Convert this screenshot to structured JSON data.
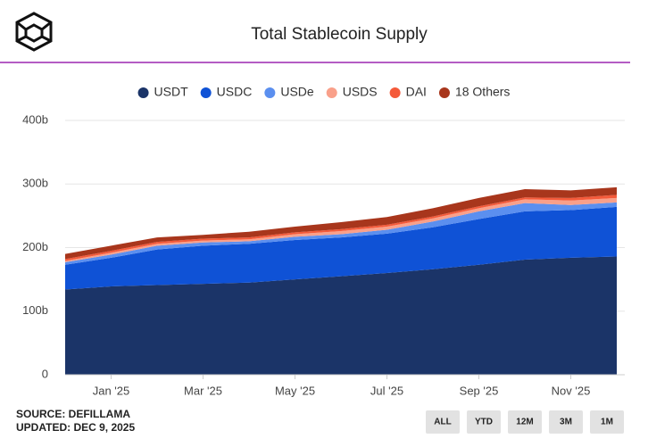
{
  "header": {
    "title": "Total Stablecoin Supply"
  },
  "chart_data": {
    "type": "area",
    "stacked": true,
    "categories": [
      null,
      "Jan '25",
      null,
      "Mar '25",
      null,
      "May '25",
      null,
      "Jul '25",
      null,
      "Sep '25",
      null,
      "Nov '25",
      null
    ],
    "series": [
      {
        "name": "USDT",
        "color": "#1b3468",
        "values": [
          134,
          139,
          141,
          143,
          145,
          150,
          155,
          160,
          166,
          173,
          181,
          184,
          186
        ]
      },
      {
        "name": "USDC",
        "color": "#0f52d6",
        "values": [
          39,
          45,
          56,
          60,
          61,
          62,
          61,
          62,
          66,
          72,
          76,
          75,
          78
        ]
      },
      {
        "name": "USDe",
        "color": "#5b8fef",
        "values": [
          4,
          5,
          6,
          5,
          4,
          5,
          5,
          6,
          9,
          12,
          13,
          8,
          7
        ]
      },
      {
        "name": "USDS",
        "color": "#f9a08a",
        "values": [
          2,
          3,
          3,
          3,
          3,
          4,
          5,
          5,
          5,
          5,
          6,
          7,
          7
        ]
      },
      {
        "name": "DAI",
        "color": "#f45a3a",
        "values": [
          3,
          3,
          3,
          3,
          3,
          3,
          3,
          3,
          3,
          3,
          3,
          4,
          5
        ]
      },
      {
        "name": "18 Others",
        "color": "#a8361c",
        "values": [
          8,
          8,
          7,
          6,
          9,
          9,
          11,
          12,
          13,
          13,
          13,
          12,
          12
        ]
      }
    ],
    "ylim": [
      0,
      400
    ],
    "yticks": [
      0,
      {
        "value": 100,
        "label": "100b"
      },
      {
        "value": 200,
        "label": "200b"
      },
      {
        "value": 300,
        "label": "300b"
      },
      {
        "value": 400,
        "label": "400b"
      }
    ],
    "grid": true,
    "legend": "top"
  },
  "footer": {
    "source": "SOURCE: DEFILLAMA",
    "updated": "UPDATED: DEC 9, 2025"
  },
  "buttons": [
    "ALL",
    "YTD",
    "12M",
    "3M",
    "1M"
  ]
}
